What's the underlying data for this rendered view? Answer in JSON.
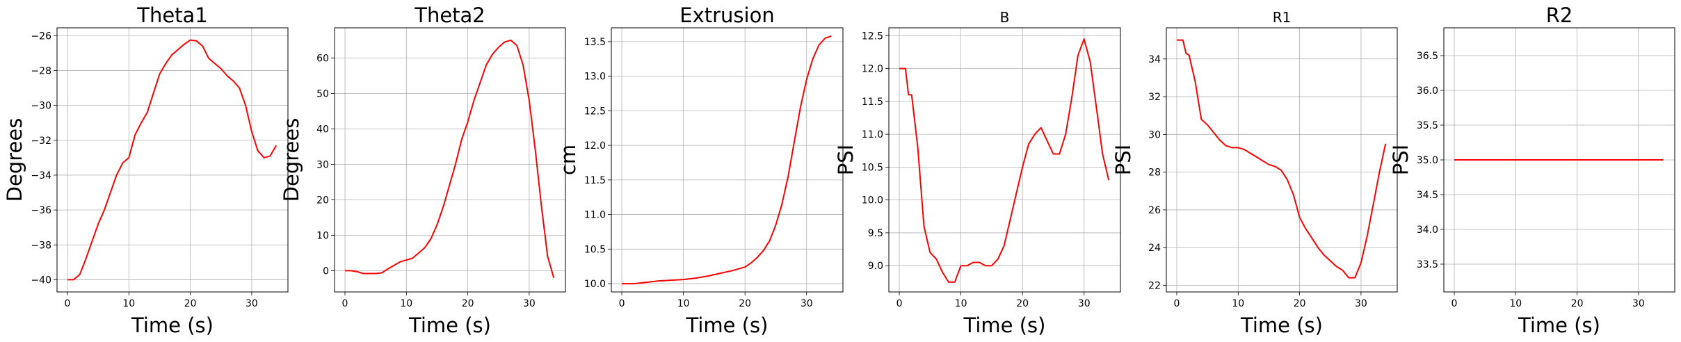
{
  "figure": {
    "line_color": "#ff0000",
    "grid": true
  },
  "chart_data": [
    {
      "type": "line",
      "title": "Theta1",
      "xlabel": "Time (s)",
      "ylabel": "Degrees",
      "xlim": [
        -1.7,
        35.9
      ],
      "ylim": [
        -40.7,
        -25.55
      ],
      "xticks": [
        0,
        10,
        20,
        30
      ],
      "yticks": [
        -40,
        -38,
        -36,
        -34,
        -32,
        -30,
        -28,
        -26
      ],
      "series": [
        {
          "x": [
            0,
            1,
            2,
            3,
            4,
            5,
            6,
            7,
            8,
            9,
            10,
            11,
            12,
            13,
            14,
            15,
            16,
            17,
            18,
            19,
            20,
            21,
            22,
            23,
            24,
            25,
            26,
            27,
            28,
            29,
            30,
            31,
            32,
            33,
            34
          ],
          "y": [
            -40,
            -40,
            -39.7,
            -38.8,
            -37.8,
            -36.8,
            -36,
            -35,
            -34,
            -33.3,
            -33,
            -31.7,
            -31,
            -30.4,
            -29.3,
            -28.2,
            -27.6,
            -27.1,
            -26.8,
            -26.5,
            -26.25,
            -26.3,
            -26.6,
            -27.3,
            -27.6,
            -27.9,
            -28.3,
            -28.6,
            -29,
            -30,
            -31.5,
            -32.6,
            -33,
            -32.9,
            -32.3
          ]
        }
      ]
    },
    {
      "type": "line",
      "title": "Theta2",
      "xlabel": "Time (s)",
      "ylabel": "Degrees",
      "xlim": [
        -1.7,
        35.9
      ],
      "ylim": [
        -6,
        68.5
      ],
      "xticks": [
        0,
        10,
        20,
        30
      ],
      "yticks": [
        0,
        10,
        20,
        30,
        40,
        50,
        60
      ],
      "series": [
        {
          "x": [
            0,
            1,
            2,
            3,
            4,
            5,
            6,
            7,
            8,
            9,
            10,
            11,
            12,
            13,
            14,
            15,
            16,
            17,
            18,
            19,
            20,
            21,
            22,
            23,
            24,
            25,
            26,
            27,
            28,
            29,
            30,
            31,
            32,
            33,
            34
          ],
          "y": [
            0,
            0,
            -0.3,
            -0.8,
            -0.8,
            -0.8,
            -0.6,
            0.5,
            1.5,
            2.5,
            3,
            3.5,
            5,
            6.5,
            9,
            13,
            18,
            24,
            30,
            37,
            42,
            48,
            53,
            58,
            61,
            63,
            64.5,
            65,
            63.5,
            58,
            48,
            34,
            18,
            4,
            -2
          ]
        }
      ]
    },
    {
      "type": "line",
      "title": "Extrusion",
      "xlabel": "Time (s)",
      "ylabel": "cm",
      "xlim": [
        -1.7,
        35.9
      ],
      "ylim": [
        9.88,
        13.7
      ],
      "xticks": [
        0,
        10,
        20,
        30
      ],
      "yticks": [
        10.0,
        10.5,
        11.0,
        11.5,
        12.0,
        12.5,
        13.0,
        13.5
      ],
      "series": [
        {
          "x": [
            0,
            2,
            4,
            6,
            8,
            10,
            12,
            14,
            16,
            18,
            20,
            21,
            22,
            23,
            24,
            25,
            26,
            27,
            28,
            29,
            30,
            31,
            32,
            33,
            34
          ],
          "y": [
            10,
            10,
            10.02,
            10.04,
            10.05,
            10.06,
            10.08,
            10.11,
            10.15,
            10.19,
            10.24,
            10.3,
            10.38,
            10.48,
            10.62,
            10.85,
            11.15,
            11.55,
            12.05,
            12.55,
            12.95,
            13.25,
            13.45,
            13.55,
            13.58
          ]
        }
      ]
    },
    {
      "type": "line",
      "title": "B",
      "xlabel": "Time (s)",
      "ylabel": "PSI",
      "xlim": [
        -1.7,
        35.9
      ],
      "ylim": [
        8.6,
        12.62
      ],
      "xticks": [
        0,
        10,
        20,
        30
      ],
      "yticks": [
        9.0,
        9.5,
        10.0,
        10.5,
        11.0,
        11.5,
        12.0,
        12.5
      ],
      "series": [
        {
          "x": [
            0,
            1,
            1.5,
            2,
            3,
            4,
            5,
            6,
            7,
            8,
            9,
            10,
            11,
            12,
            13,
            14,
            15,
            16,
            17,
            18,
            19,
            20,
            21,
            22,
            23,
            24,
            25,
            26,
            27,
            28,
            29,
            30,
            31,
            32,
            33,
            34
          ],
          "y": [
            12,
            12,
            11.6,
            11.6,
            10.8,
            9.6,
            9.2,
            9.1,
            8.9,
            8.75,
            8.75,
            9,
            9,
            9.05,
            9.05,
            9,
            9,
            9.1,
            9.3,
            9.7,
            10.1,
            10.5,
            10.85,
            11,
            11.1,
            10.9,
            10.7,
            10.7,
            11,
            11.55,
            12.2,
            12.45,
            12.1,
            11.4,
            10.7,
            10.3
          ]
        }
      ]
    },
    {
      "type": "line",
      "title": "R1",
      "xlabel": "Time (s)",
      "ylabel": "PSI",
      "xlim": [
        -1.7,
        35.9
      ],
      "ylim": [
        21.65,
        35.65
      ],
      "xticks": [
        0,
        10,
        20,
        30
      ],
      "yticks": [
        22,
        24,
        26,
        28,
        30,
        32,
        34
      ],
      "series": [
        {
          "x": [
            0,
            1,
            1.5,
            2,
            3,
            4,
            5,
            6,
            7,
            8,
            9,
            10,
            11,
            12,
            13,
            14,
            15,
            16,
            17,
            18,
            19,
            20,
            21,
            22,
            23,
            24,
            25,
            26,
            27,
            28,
            29,
            30,
            31,
            32,
            33,
            34
          ],
          "y": [
            35,
            35,
            34.3,
            34.2,
            32.8,
            30.8,
            30.5,
            30.1,
            29.7,
            29.4,
            29.3,
            29.3,
            29.2,
            29,
            28.8,
            28.6,
            28.4,
            28.3,
            28.1,
            27.6,
            26.8,
            25.6,
            25,
            24.5,
            24,
            23.6,
            23.3,
            23,
            22.8,
            22.4,
            22.4,
            23.2,
            24.6,
            26.3,
            28,
            29.5
          ]
        }
      ]
    },
    {
      "type": "line",
      "title": "R2",
      "xlabel": "Time (s)",
      "ylabel": "PSI",
      "xlim": [
        -1.7,
        35.9
      ],
      "ylim": [
        33.1,
        36.9
      ],
      "xticks": [
        0,
        10,
        20,
        30
      ],
      "yticks": [
        33.5,
        34.0,
        34.5,
        35.0,
        35.5,
        36.0,
        36.5
      ],
      "series": [
        {
          "x": [
            0,
            34
          ],
          "y": [
            35,
            35
          ]
        }
      ]
    }
  ]
}
